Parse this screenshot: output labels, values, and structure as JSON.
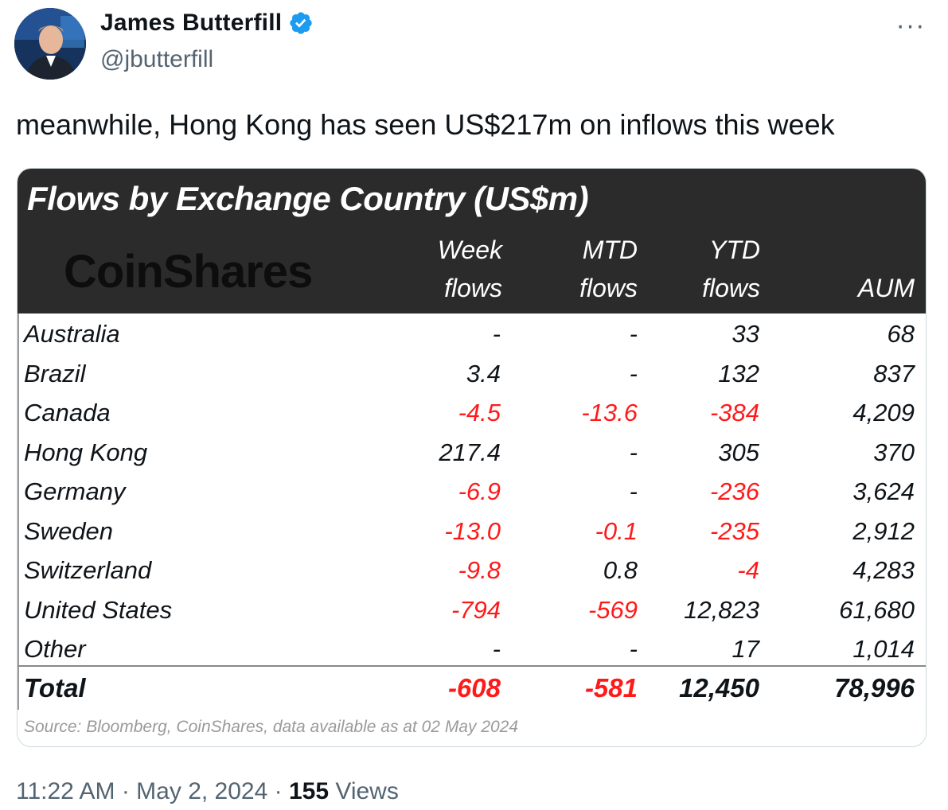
{
  "author": {
    "name": "James Butterfill",
    "handle": "@jbutterfill"
  },
  "tweet": {
    "text": "meanwhile, Hong Kong has seen US$217m on inflows this week",
    "time": "11:22 AM · May 2, 2024 · ",
    "views_count": "155",
    "views_label": " Views"
  },
  "table": {
    "title": "Flows by Exchange Country (US$m)",
    "logo": "CoinShares",
    "columns": [
      {
        "line1": "Week",
        "line2": "flows"
      },
      {
        "line1": "MTD",
        "line2": "flows"
      },
      {
        "line1": "YTD",
        "line2": "flows"
      },
      {
        "line1": "",
        "line2": "AUM"
      }
    ],
    "rows": [
      {
        "country": "Australia",
        "week": "-",
        "mtd": "-",
        "ytd": "33",
        "aum": "68"
      },
      {
        "country": "Brazil",
        "week": "3.4",
        "mtd": "-",
        "ytd": "132",
        "aum": "837"
      },
      {
        "country": "Canada",
        "week": "-4.5",
        "mtd": "-13.6",
        "ytd": "-384",
        "aum": "4,209"
      },
      {
        "country": "Hong Kong",
        "week": "217.4",
        "mtd": "-",
        "ytd": "305",
        "aum": "370"
      },
      {
        "country": "Germany",
        "week": "-6.9",
        "mtd": "-",
        "ytd": "-236",
        "aum": "3,624"
      },
      {
        "country": "Sweden",
        "week": "-13.0",
        "mtd": "-0.1",
        "ytd": "-235",
        "aum": "2,912"
      },
      {
        "country": "Switzerland",
        "week": "-9.8",
        "mtd": "0.8",
        "ytd": "-4",
        "aum": "4,283"
      },
      {
        "country": "United States",
        "week": "-794",
        "mtd": "-569",
        "ytd": "12,823",
        "aum": "61,680"
      },
      {
        "country": "Other",
        "week": "-",
        "mtd": "-",
        "ytd": "17",
        "aum": "1,014"
      }
    ],
    "total": {
      "country": "Total",
      "week": "-608",
      "mtd": "-581",
      "ytd": "12,450",
      "aum": "78,996"
    },
    "source": "Source: Bloomberg, CoinShares, data available as at 02 May 2024"
  },
  "colors": {
    "negative": "#ff1a1a",
    "header_bg": "#2b2b2b",
    "verified": "#1d9bf0"
  },
  "icons": [
    "avatar-photo",
    "verified-badge-icon",
    "more-options-icon"
  ]
}
